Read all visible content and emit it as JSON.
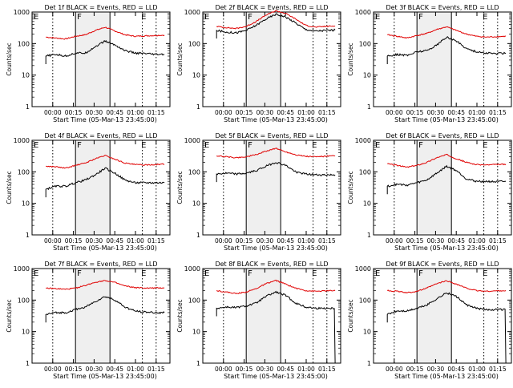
{
  "chart_data": [
    {
      "type": "line",
      "title": "Det 1f BLACK = Events, RED = LLD",
      "xlabel": "Start Time (05-Mar-13 23:45:00)",
      "ylabel": "Counts/sec",
      "y_scale": "log",
      "ylim": [
        1,
        1000
      ],
      "yticks": [
        "1",
        "10",
        "100",
        "1000"
      ],
      "xticks": [
        "00:00",
        "00:15",
        "00:30",
        "00:45",
        "01:00",
        "01:15"
      ],
      "markers": [
        "E",
        "F",
        "E"
      ],
      "series": [
        {
          "name": "LLD",
          "color": "#e00000",
          "y": [
            160,
            150,
            140,
            170,
            190,
            260,
            330,
            250,
            190,
            170,
            175,
            180,
            185
          ]
        },
        {
          "name": "Events",
          "color": "#000000",
          "y": [
            40,
            45,
            40,
            50,
            50,
            80,
            120,
            90,
            60,
            50,
            48,
            45,
            45
          ]
        }
      ]
    },
    {
      "type": "line",
      "title": "Det 2f BLACK = Events, RED = LLD",
      "xlabel": "Start Time (05-Mar-13 23:45:00)",
      "ylabel": "Counts/sec",
      "y_scale": "log",
      "ylim": [
        1,
        1000
      ],
      "yticks": [
        "1",
        "10",
        "100",
        "1000"
      ],
      "xticks": [
        "00:00",
        "00:15",
        "00:30",
        "00:45",
        "01:00",
        "01:15"
      ],
      "markers": [
        "E",
        "F",
        "E"
      ],
      "series": [
        {
          "name": "LLD",
          "color": "#e00000",
          "y": [
            350,
            320,
            300,
            350,
            500,
            800,
            1100,
            900,
            600,
            380,
            330,
            350,
            360
          ]
        },
        {
          "name": "Events",
          "color": "#000000",
          "y": [
            260,
            230,
            220,
            260,
            380,
            600,
            850,
            700,
            450,
            280,
            250,
            260,
            270
          ]
        }
      ]
    },
    {
      "type": "line",
      "title": "Det 3f BLACK = Events, RED = LLD",
      "xlabel": "Start Time (05-Mar-13 23:45:00)",
      "ylabel": "Counts/sec",
      "y_scale": "log",
      "ylim": [
        1,
        1000
      ],
      "yticks": [
        "1",
        "10",
        "100",
        "1000"
      ],
      "xticks": [
        "00:00",
        "00:15",
        "00:30",
        "00:45",
        "01:00",
        "01:15"
      ],
      "markers": [
        "E",
        "F",
        "E"
      ],
      "series": [
        {
          "name": "LLD",
          "color": "#e00000",
          "y": [
            190,
            170,
            150,
            180,
            210,
            280,
            340,
            260,
            200,
            170,
            160,
            165,
            170
          ]
        },
        {
          "name": "Events",
          "color": "#000000",
          "y": [
            40,
            45,
            42,
            55,
            60,
            90,
            160,
            120,
            70,
            55,
            50,
            48,
            50
          ]
        }
      ]
    },
    {
      "type": "line",
      "title": "Det 4f BLACK = Events, RED = LLD",
      "xlabel": "Start Time (05-Mar-13 23:45:00)",
      "ylabel": "Counts/sec",
      "y_scale": "log",
      "ylim": [
        1,
        1000
      ],
      "yticks": [
        "1",
        "10",
        "100",
        "1000"
      ],
      "xticks": [
        "00:00",
        "00:15",
        "00:30",
        "00:45",
        "01:00",
        "01:15"
      ],
      "markers": [
        "E",
        "F",
        "E"
      ],
      "series": [
        {
          "name": "LLD",
          "color": "#e00000",
          "y": [
            150,
            145,
            130,
            160,
            190,
            260,
            330,
            250,
            190,
            170,
            165,
            170,
            175
          ]
        },
        {
          "name": "Events",
          "color": "#000000",
          "y": [
            28,
            35,
            35,
            45,
            55,
            80,
            130,
            90,
            55,
            45,
            45,
            45,
            45
          ]
        }
      ]
    },
    {
      "type": "line",
      "title": "Det 5f BLACK = Events, RED = LLD",
      "xlabel": "Start Time (05-Mar-13 23:45:00)",
      "ylabel": "Counts/sec",
      "y_scale": "log",
      "ylim": [
        1,
        1000
      ],
      "yticks": [
        "1",
        "10",
        "100",
        "1000"
      ],
      "xticks": [
        "00:00",
        "00:15",
        "00:30",
        "00:45",
        "01:00",
        "01:15"
      ],
      "markers": [
        "E",
        "F",
        "E"
      ],
      "series": [
        {
          "name": "LLD",
          "color": "#e00000",
          "y": [
            320,
            300,
            280,
            300,
            350,
            450,
            560,
            430,
            350,
            310,
            300,
            310,
            320
          ]
        },
        {
          "name": "Events",
          "color": "#000000",
          "y": [
            85,
            90,
            85,
            90,
            110,
            150,
            200,
            160,
            100,
            85,
            80,
            80,
            80
          ]
        }
      ]
    },
    {
      "type": "line",
      "title": "Det 6f BLACK = Events, RED = LLD",
      "xlabel": "Start Time (05-Mar-13 23:45:00)",
      "ylabel": "Counts/sec",
      "y_scale": "log",
      "ylim": [
        1,
        1000
      ],
      "yticks": [
        "1",
        "10",
        "100",
        "1000"
      ],
      "xticks": [
        "00:00",
        "00:15",
        "00:30",
        "00:45",
        "01:00",
        "01:15"
      ],
      "markers": [
        "E",
        "F",
        "E"
      ],
      "series": [
        {
          "name": "LLD",
          "color": "#e00000",
          "y": [
            180,
            160,
            140,
            160,
            200,
            280,
            350,
            260,
            200,
            170,
            165,
            170,
            175
          ]
        },
        {
          "name": "Events",
          "color": "#000000",
          "y": [
            35,
            40,
            38,
            45,
            55,
            90,
            150,
            110,
            60,
            50,
            50,
            48,
            50
          ]
        }
      ]
    },
    {
      "type": "line",
      "title": "Det 7f BLACK = Events, RED = LLD",
      "xlabel": "Start Time (05-Mar-13 23:45:00)",
      "ylabel": "Counts/sec",
      "y_scale": "log",
      "ylim": [
        1,
        1000
      ],
      "yticks": [
        "1",
        "10",
        "100",
        "1000"
      ],
      "xticks": [
        "00:00",
        "00:15",
        "00:30",
        "00:45",
        "01:00",
        "01:15"
      ],
      "markers": [
        "E",
        "F",
        "E"
      ],
      "series": [
        {
          "name": "LLD",
          "color": "#e00000",
          "y": [
            240,
            230,
            220,
            240,
            290,
            370,
            420,
            360,
            280,
            250,
            240,
            240,
            245
          ]
        },
        {
          "name": "Events",
          "color": "#000000",
          "y": [
            35,
            40,
            40,
            50,
            60,
            90,
            130,
            100,
            60,
            45,
            42,
            40,
            40
          ]
        }
      ]
    },
    {
      "type": "line",
      "title": "Det 8f BLACK = Events, RED = LLD",
      "xlabel": "Start Time (05-Mar-13 23:45:00)",
      "ylabel": "Counts/sec",
      "y_scale": "log",
      "ylim": [
        1,
        1000
      ],
      "yticks": [
        "1",
        "10",
        "100",
        "1000"
      ],
      "xticks": [
        "00:00",
        "00:15",
        "00:30",
        "00:45",
        "01:00",
        "01:15"
      ],
      "markers": [
        "E",
        "F",
        "E"
      ],
      "series": [
        {
          "name": "LLD",
          "color": "#e00000",
          "y": [
            200,
            180,
            160,
            180,
            230,
            330,
            420,
            320,
            240,
            200,
            190,
            195,
            200
          ]
        },
        {
          "name": "Events",
          "color": "#000000",
          "y": [
            55,
            60,
            58,
            65,
            80,
            130,
            180,
            140,
            80,
            60,
            55,
            55,
            1
          ]
        }
      ]
    },
    {
      "type": "line",
      "title": "Det 9f BLACK = Events, RED = LLD",
      "xlabel": "Start Time (05-Mar-13 23:45:00)",
      "ylabel": "Counts/sec",
      "y_scale": "log",
      "ylim": [
        1,
        1000
      ],
      "yticks": [
        "1",
        "10",
        "100",
        "1000"
      ],
      "xticks": [
        "00:00",
        "00:15",
        "00:30",
        "00:45",
        "01:00",
        "01:15"
      ],
      "markers": [
        "E",
        "F",
        "E"
      ],
      "series": [
        {
          "name": "LLD",
          "color": "#e00000",
          "y": [
            200,
            190,
            170,
            190,
            240,
            330,
            410,
            320,
            240,
            200,
            190,
            195,
            200
          ]
        },
        {
          "name": "Events",
          "color": "#000000",
          "y": [
            35,
            45,
            45,
            55,
            70,
            110,
            170,
            130,
            70,
            55,
            50,
            50,
            1
          ]
        }
      ]
    }
  ]
}
